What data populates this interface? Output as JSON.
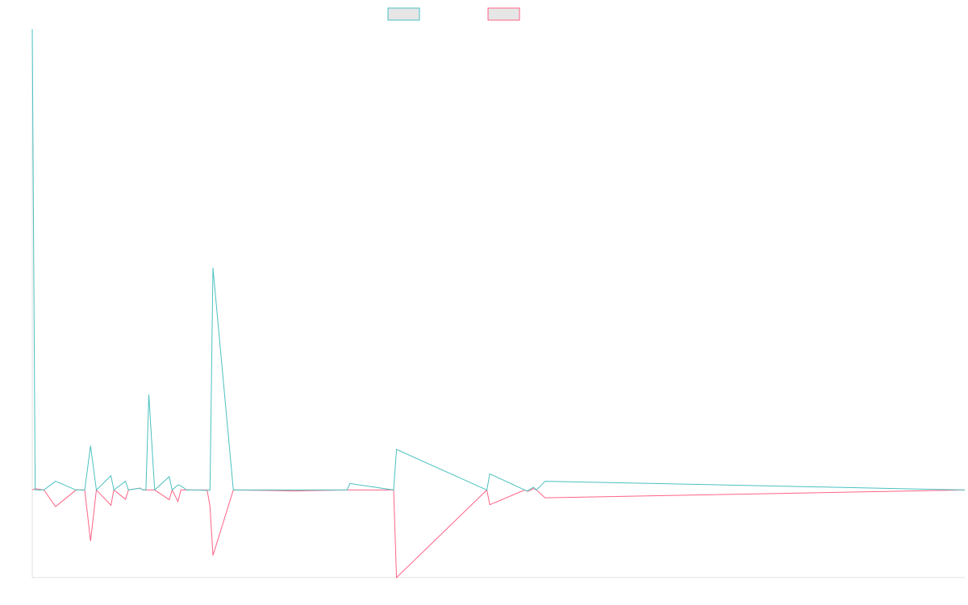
{
  "colors": {
    "series_a": "#4bc0c0",
    "series_b": "#ff6384",
    "legend_fill": "#e6e6e6",
    "axis": "#e0e0e0",
    "background": "#ffffff"
  },
  "chart_data": {
    "type": "line",
    "title": "",
    "xlabel": "",
    "ylabel": "",
    "x_tick_labels_shown": false,
    "y_tick_labels_shown": false,
    "grid": false,
    "legend_position": "top",
    "x_domain": [
      0,
      80
    ],
    "ylim": [
      -0.19,
      1.0
    ],
    "x": [
      0,
      0.25,
      1,
      2,
      3.75,
      4.5,
      5,
      5.5,
      6.75,
      7,
      8,
      8.25,
      9.25,
      9.5,
      9.75,
      10,
      10.5,
      11.75,
      12,
      12.5,
      12.75,
      13.25,
      14,
      15,
      15.25,
      15.5,
      17.25,
      20.5,
      22.5,
      27,
      27.25,
      31,
      31.25,
      39,
      39.25,
      42.25,
      42.5,
      43,
      43.25,
      44,
      80
    ],
    "series": [
      {
        "values": [
          1.0,
          0.0,
          0.0,
          0.019,
          0.0,
          0.0,
          0.096,
          0.0,
          0.031,
          0.0,
          0.019,
          0.0,
          0.004,
          0.0,
          0.0,
          0.207,
          0.0,
          0.029,
          0.0,
          0.011,
          0.009,
          0.0,
          0.0,
          -0.001,
          0.0,
          0.482,
          0.0,
          0.0,
          0.0,
          0.0,
          0.014,
          0.0,
          0.088,
          0.0,
          0.035,
          0.0,
          -0.002,
          0.006,
          0.0,
          0.019,
          0.0
        ]
      },
      {
        "values": [
          0.0,
          0.003,
          0.0,
          -0.036,
          0.0,
          0.0,
          -0.111,
          0.0,
          -0.033,
          0.0,
          -0.02,
          0.0,
          0.004,
          0.0,
          0.0,
          0.0,
          0.0,
          -0.021,
          0.0,
          -0.025,
          0.0,
          0.0,
          0.0,
          0.0,
          -0.036,
          -0.142,
          0.0,
          -0.001,
          -0.002,
          0.0,
          0.0,
          0.0,
          -0.19,
          0.0,
          -0.032,
          0.0,
          -0.003,
          0.003,
          0.0,
          -0.017,
          0.0
        ]
      }
    ]
  }
}
